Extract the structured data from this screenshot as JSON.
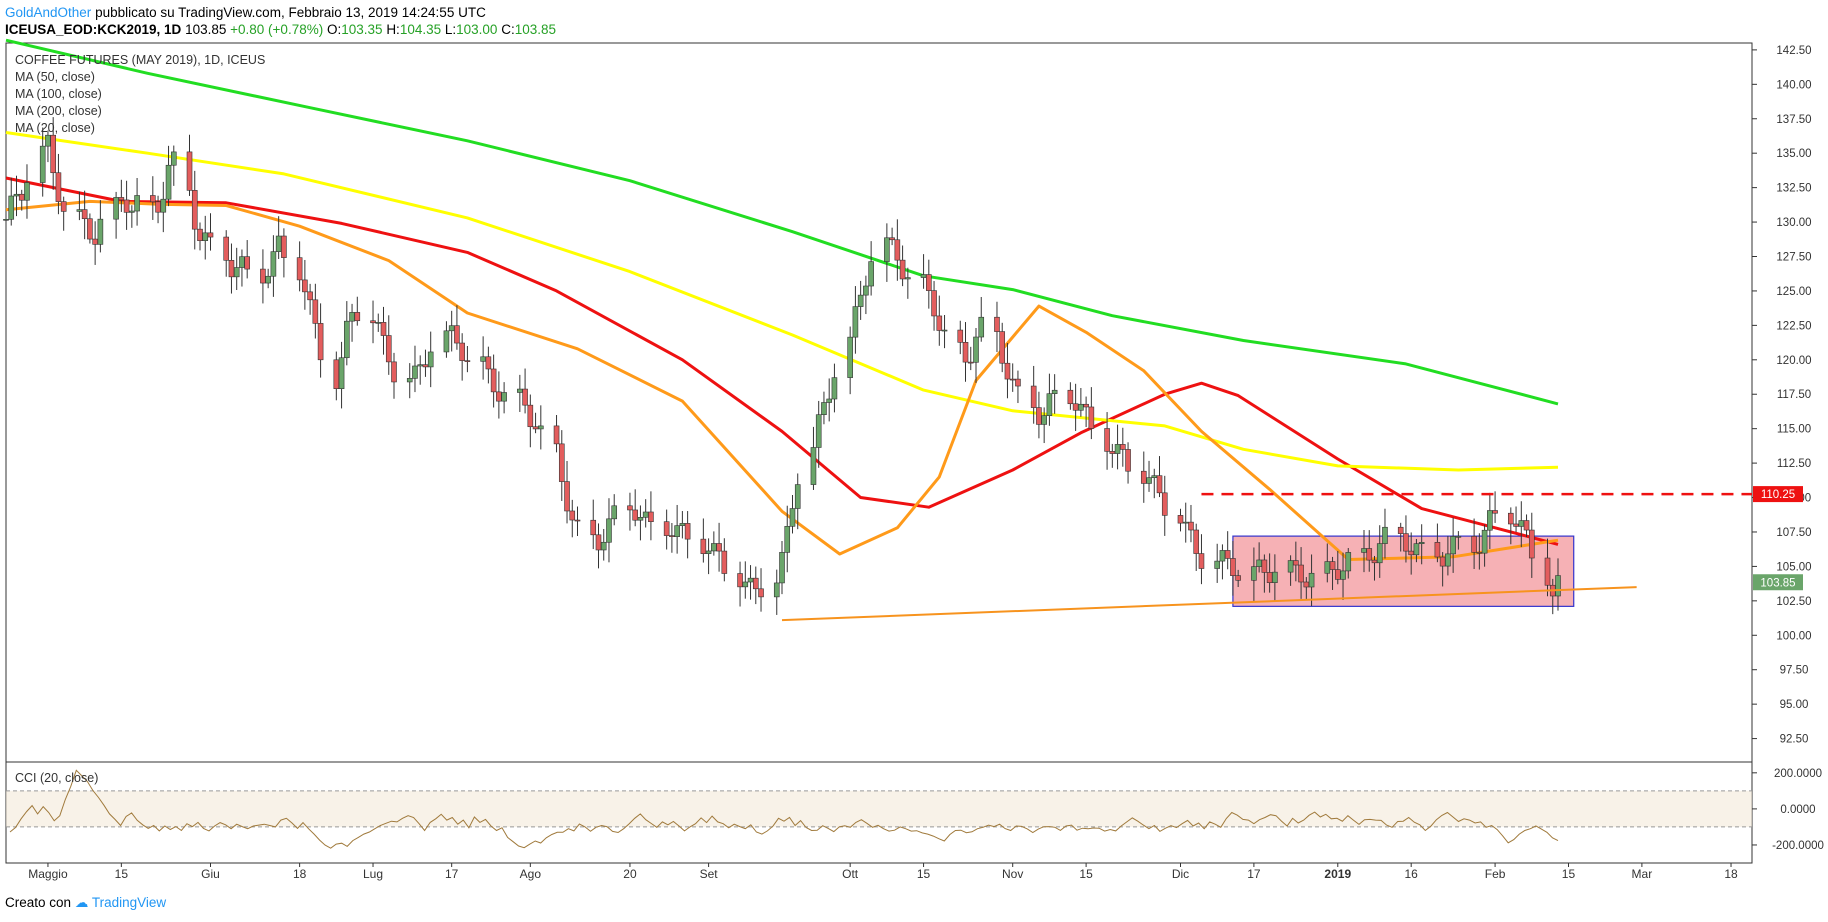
{
  "header": {
    "author": "GoldAndOther",
    "published": "pubblicato su TradingView.com, Febbraio 13, 2019 14:24:55 UTC",
    "symbol": "ICEUSA_EOD:KCK2019, 1D",
    "last": "103.85",
    "change": "+0.80 (+0.78%)",
    "o_label": "O:",
    "o_value": "103.35",
    "h_label": "H:",
    "h_value": "104.35",
    "l_label": "L:",
    "l_value": "103.00",
    "c_label": "C:",
    "c_value": "103.85"
  },
  "footer": {
    "created_with": "Creato con",
    "brand": "TradingView"
  },
  "chart_data": {
    "type": "candlestick",
    "title": "COFFEE FUTURES (MAY 2019), 1D, ICEUS",
    "legend": [
      "MA (50, close)",
      "MA (100, close)",
      "MA (200, close)",
      "MA (20, close)"
    ],
    "price_ticks": [
      "142.50",
      "140.00",
      "137.50",
      "135.00",
      "132.50",
      "130.00",
      "127.50",
      "125.00",
      "122.50",
      "120.00",
      "117.50",
      "115.00",
      "112.50",
      "110.00",
      "107.50",
      "105.00",
      "102.50",
      "100.00",
      "97.50",
      "95.00",
      "92.50"
    ],
    "ylim": [
      90.8,
      143.0
    ],
    "last_price_label": "103.85",
    "resistance_label": "110.25",
    "resistance_level": 110.25,
    "range_box": {
      "from": "2018-12-13",
      "to": "2019-02-16",
      "low": 102.1,
      "high": 107.2
    },
    "support_line": {
      "from": [
        "2018-09-18",
        101.1
      ],
      "to": [
        "2019-02-28",
        103.5
      ]
    },
    "date_ticks": [
      "Maggio",
      "15",
      "Giu",
      "18",
      "Lug",
      "17",
      "Ago",
      "20",
      "Set",
      "Ott",
      "15",
      "Nov",
      "15",
      "Dic",
      "17",
      "2019",
      "16",
      "Feb",
      "15",
      "Mar",
      "18"
    ],
    "date_tick_bold": "2019",
    "close_series": [
      130.2,
      130.8,
      131.3,
      132.1,
      134.5,
      135.6,
      133.9,
      132.6,
      130.9,
      130.2,
      129.4,
      128.8,
      129.5,
      130.7,
      131.4,
      131.2,
      131.6,
      131.3,
      131.9,
      133.8,
      134.9,
      131.9,
      129.6,
      128.4,
      128.1,
      127.7,
      127.3,
      127.4,
      127.2,
      126.3,
      126.5,
      126.9,
      127.6,
      126.8,
      126.1,
      124.5,
      122.9,
      121.4,
      119.3,
      120.6,
      122.7,
      123.4,
      122.9,
      121.6,
      120.5,
      119.9,
      119.2,
      119.1,
      119.7,
      120.6,
      121.5,
      121.4,
      120.9,
      120.4,
      119.8,
      119.3,
      118.9,
      118.6,
      118.1,
      117.4,
      116.6,
      115.5,
      114.6,
      113.2,
      111.5,
      109.9,
      108.4,
      107.8,
      107.4,
      107.6,
      107.9,
      108.3,
      108.9,
      108.5,
      107.9,
      107.7,
      108.2,
      108.5,
      108.1,
      107.4,
      106.9,
      106.2,
      105.3,
      104.7,
      104.3,
      103.9,
      103.6,
      103.7,
      104.3,
      105.1,
      106.2,
      108.6,
      111.2,
      113.4,
      115.2,
      117.1,
      119.2,
      121.6,
      123.7,
      125.6,
      126.9,
      127.7,
      127.6,
      127.2,
      126.1,
      125.4,
      125.5,
      125.0,
      123.3,
      121.8,
      120.3,
      119.8,
      120.8,
      121.7,
      121.3,
      120.2,
      119.1,
      118.1,
      117.4,
      116.6,
      116.2,
      116.6,
      116.9,
      116.7,
      116.2,
      115.6,
      115.1,
      114.5,
      113.9,
      113.3,
      112.4,
      111.5,
      110.6,
      109.7,
      109.3,
      108.8,
      107.9,
      107.2,
      106.5,
      106.0,
      105.4,
      104.8,
      104.4,
      104.0,
      104.2,
      104.5,
      105.0,
      105.5,
      105.2,
      104.8,
      104.4,
      104.0,
      103.9,
      104.0,
      104.6,
      105.3,
      105.8,
      106.3,
      106.8,
      107.3,
      107.1,
      106.6,
      106.0,
      105.6,
      105.4,
      105.7,
      106.4,
      106.9,
      107.2,
      107.0,
      106.9,
      107.5,
      108.1,
      108.4,
      107.9,
      107.4,
      106.9,
      105.9,
      103.3,
      103.85
    ],
    "ma_series": [
      {
        "name": "MA (50, close)",
        "color": "#ee1111",
        "points": [
          [
            "2018-04-23",
            133.2
          ],
          [
            "2018-05-15",
            131.5
          ],
          [
            "2018-06-04",
            131.4
          ],
          [
            "2018-06-26",
            129.9
          ],
          [
            "2018-07-20",
            127.8
          ],
          [
            "2018-08-06",
            125.0
          ],
          [
            "2018-08-30",
            120.0
          ],
          [
            "2018-09-18",
            114.8
          ],
          [
            "2018-10-03",
            110.0
          ],
          [
            "2018-10-16",
            109.3
          ],
          [
            "2018-11-01",
            112.0
          ],
          [
            "2018-11-14",
            114.7
          ],
          [
            "2018-11-30",
            117.5
          ],
          [
            "2018-12-07",
            118.3
          ],
          [
            "2018-12-14",
            117.4
          ],
          [
            "2019-01-02",
            112.8
          ],
          [
            "2019-01-18",
            109.2
          ],
          [
            "2019-02-01",
            107.8
          ],
          [
            "2019-02-13",
            106.6
          ]
        ]
      },
      {
        "name": "MA (100, close)",
        "color": "#ffff00",
        "points": [
          [
            "2018-04-23",
            136.5
          ],
          [
            "2018-05-20",
            135.0
          ],
          [
            "2018-06-15",
            133.5
          ],
          [
            "2018-07-20",
            130.3
          ],
          [
            "2018-08-20",
            126.4
          ],
          [
            "2018-09-20",
            121.8
          ],
          [
            "2018-10-15",
            117.8
          ],
          [
            "2018-11-01",
            116.3
          ],
          [
            "2018-11-30",
            115.2
          ],
          [
            "2018-12-15",
            113.5
          ],
          [
            "2019-01-02",
            112.3
          ],
          [
            "2019-01-25",
            112.0
          ],
          [
            "2019-02-13",
            112.2
          ]
        ]
      },
      {
        "name": "MA (200, close)",
        "color": "#22dd22",
        "points": [
          [
            "2018-04-23",
            143.2
          ],
          [
            "2018-05-20",
            140.8
          ],
          [
            "2018-06-20",
            138.3
          ],
          [
            "2018-07-20",
            135.9
          ],
          [
            "2018-08-20",
            133.0
          ],
          [
            "2018-09-20",
            129.3
          ],
          [
            "2018-10-15",
            126.1
          ],
          [
            "2018-11-01",
            125.1
          ],
          [
            "2018-11-20",
            123.2
          ],
          [
            "2018-12-15",
            121.4
          ],
          [
            "2019-01-15",
            119.7
          ],
          [
            "2019-02-13",
            116.8
          ]
        ]
      },
      {
        "name": "MA (20, close)",
        "color": "#ff9a1a",
        "points": [
          [
            "2018-04-23",
            130.9
          ],
          [
            "2018-05-09",
            131.5
          ],
          [
            "2018-05-22",
            131.3
          ],
          [
            "2018-06-04",
            131.2
          ],
          [
            "2018-06-18",
            129.7
          ],
          [
            "2018-07-05",
            127.2
          ],
          [
            "2018-07-20",
            123.4
          ],
          [
            "2018-08-10",
            120.8
          ],
          [
            "2018-08-30",
            117.0
          ],
          [
            "2018-09-18",
            109.0
          ],
          [
            "2018-09-29",
            105.9
          ],
          [
            "2018-10-10",
            107.8
          ],
          [
            "2018-10-18",
            111.5
          ],
          [
            "2018-10-25",
            118.5
          ],
          [
            "2018-11-06",
            123.9
          ],
          [
            "2018-11-15",
            122.0
          ],
          [
            "2018-11-26",
            119.2
          ],
          [
            "2018-12-07",
            114.8
          ],
          [
            "2018-12-20",
            110.6
          ],
          [
            "2019-01-04",
            105.5
          ],
          [
            "2019-01-24",
            105.7
          ],
          [
            "2019-02-13",
            106.9
          ]
        ]
      }
    ],
    "indicator": {
      "name": "CCI (20, close)",
      "ticks": [
        "200.0000",
        "0.0000",
        "-200.0000"
      ],
      "band": [
        -100,
        100
      ],
      "ylim": [
        -300,
        260
      ],
      "values": [
        -128,
        -103,
        -55,
        -15,
        18,
        -28,
        12,
        -20,
        -66,
        -38,
        52,
        125,
        214,
        183,
        152,
        102,
        63,
        20,
        -28,
        -58,
        -92,
        -42,
        -22,
        -63,
        -88,
        -108,
        -92,
        -122,
        -95,
        -114,
        -98,
        -120,
        -82,
        -98,
        -75,
        -108,
        -122,
        -95,
        -76,
        -88,
        -110,
        -85,
        -98,
        -110,
        -95,
        -90,
        -85,
        -92,
        -100,
        -62,
        -52,
        -78,
        -108,
        -76,
        -110,
        -140,
        -173,
        -201,
        -218,
        -195,
        -190,
        -208,
        -176,
        -158,
        -140,
        -128,
        -110,
        -92,
        -80,
        -68,
        -72,
        -52,
        -38,
        -48,
        -82,
        -120,
        -75,
        -55,
        -30,
        -62,
        -48,
        -85,
        -62,
        -105,
        -45,
        -75,
        -58,
        -95,
        -120,
        -105,
        -158,
        -182,
        -206,
        -215,
        -196,
        -178,
        -189,
        -160,
        -142,
        -130,
        -130,
        -110,
        -122,
        -84,
        -100,
        -124,
        -102,
        -92,
        -99,
        -125,
        -131,
        -110,
        -82,
        -52,
        -28,
        -60,
        -81,
        -102,
        -72,
        -88,
        -70,
        -95,
        -122,
        -100,
        -82,
        -50,
        -76,
        -40,
        -72,
        -82,
        -105,
        -85,
        -98,
        -110,
        -88,
        -128,
        -140,
        -122,
        -96,
        -52,
        -68,
        -48,
        -92,
        -65,
        -103,
        -120,
        -118,
        -93,
        -108,
        -126,
        -100,
        -94,
        -102,
        -75,
        -60,
        -80,
        -102,
        -91,
        -110,
        -123,
        -118,
        -100,
        -110,
        -123,
        -121,
        -133,
        -140,
        -151,
        -165,
        -178,
        -142,
        -120,
        -118,
        -132,
        -127,
        -110,
        -102,
        -90,
        -98,
        -85,
        -109,
        -120,
        -95,
        -97,
        -111,
        -131,
        -112,
        -99,
        -98,
        -102,
        -119,
        -95,
        -90,
        -118,
        -107,
        -110,
        -106,
        -107,
        -123,
        -114,
        -122,
        -95,
        -72,
        -50,
        -68,
        -90,
        -110,
        -92,
        -125,
        -107,
        -93,
        -104,
        -82,
        -64,
        -95,
        -78,
        -110,
        -72,
        -85,
        -102,
        -53,
        -20,
        -35,
        -58,
        -62,
        -82,
        -60,
        -48,
        -32,
        -38,
        -68,
        -95,
        -52,
        -78,
        -62,
        -35,
        -18,
        -45,
        -30,
        -55,
        -52,
        -68,
        -38,
        -62,
        -86,
        -60,
        -58,
        -62,
        -64,
        -90,
        -102,
        -70,
        -68,
        -48,
        -74,
        -88,
        -120,
        -96,
        -60,
        -36,
        -20,
        -45,
        -70,
        -55,
        -62,
        -78,
        -72,
        -102,
        -92,
        -115,
        -150,
        -188,
        -170,
        -140,
        -120,
        -110,
        -95,
        -112,
        -130,
        -160,
        -176
      ]
    }
  }
}
